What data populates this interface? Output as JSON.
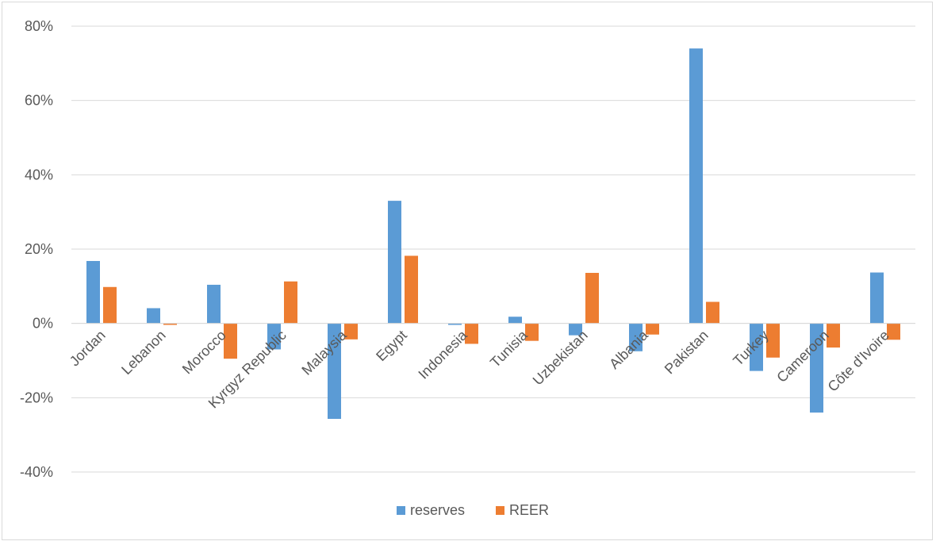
{
  "chart_data": {
    "type": "bar",
    "title": "",
    "xlabel": "",
    "ylabel": "",
    "categories": [
      "Jordan",
      "Lebanon",
      "Morocco",
      "Kyrgyz Republic",
      "Malaysia",
      "Egypt",
      "Indonesia",
      "Tunisia",
      "Uzbekistan",
      "Albania",
      "Pakistan",
      "Turkey",
      "Cameroon",
      "Côte d'Ivoire"
    ],
    "series": [
      {
        "name": "reserves",
        "color": "#5b9bd5",
        "values": [
          16.8,
          4.1,
          10.4,
          -7.0,
          -25.7,
          33.0,
          -0.4,
          1.8,
          -3.2,
          -7.5,
          74.0,
          -12.8,
          -24.0,
          13.7
        ]
      },
      {
        "name": "REER",
        "color": "#ed7d31",
        "values": [
          9.8,
          -0.4,
          -9.5,
          11.3,
          -4.3,
          18.2,
          -5.5,
          -4.7,
          13.6,
          -3.0,
          5.8,
          -9.2,
          -6.5,
          -4.4
        ]
      }
    ],
    "ylim": [
      -40,
      80
    ],
    "yticks": [
      -40,
      -20,
      0,
      20,
      40,
      60,
      80
    ],
    "ytick_labels": [
      "-40%",
      "-20%",
      "0%",
      "20%",
      "40%",
      "60%",
      "80%"
    ],
    "grid": true,
    "legend": "bottom-center",
    "gridline_color": "#d9d9d9"
  }
}
